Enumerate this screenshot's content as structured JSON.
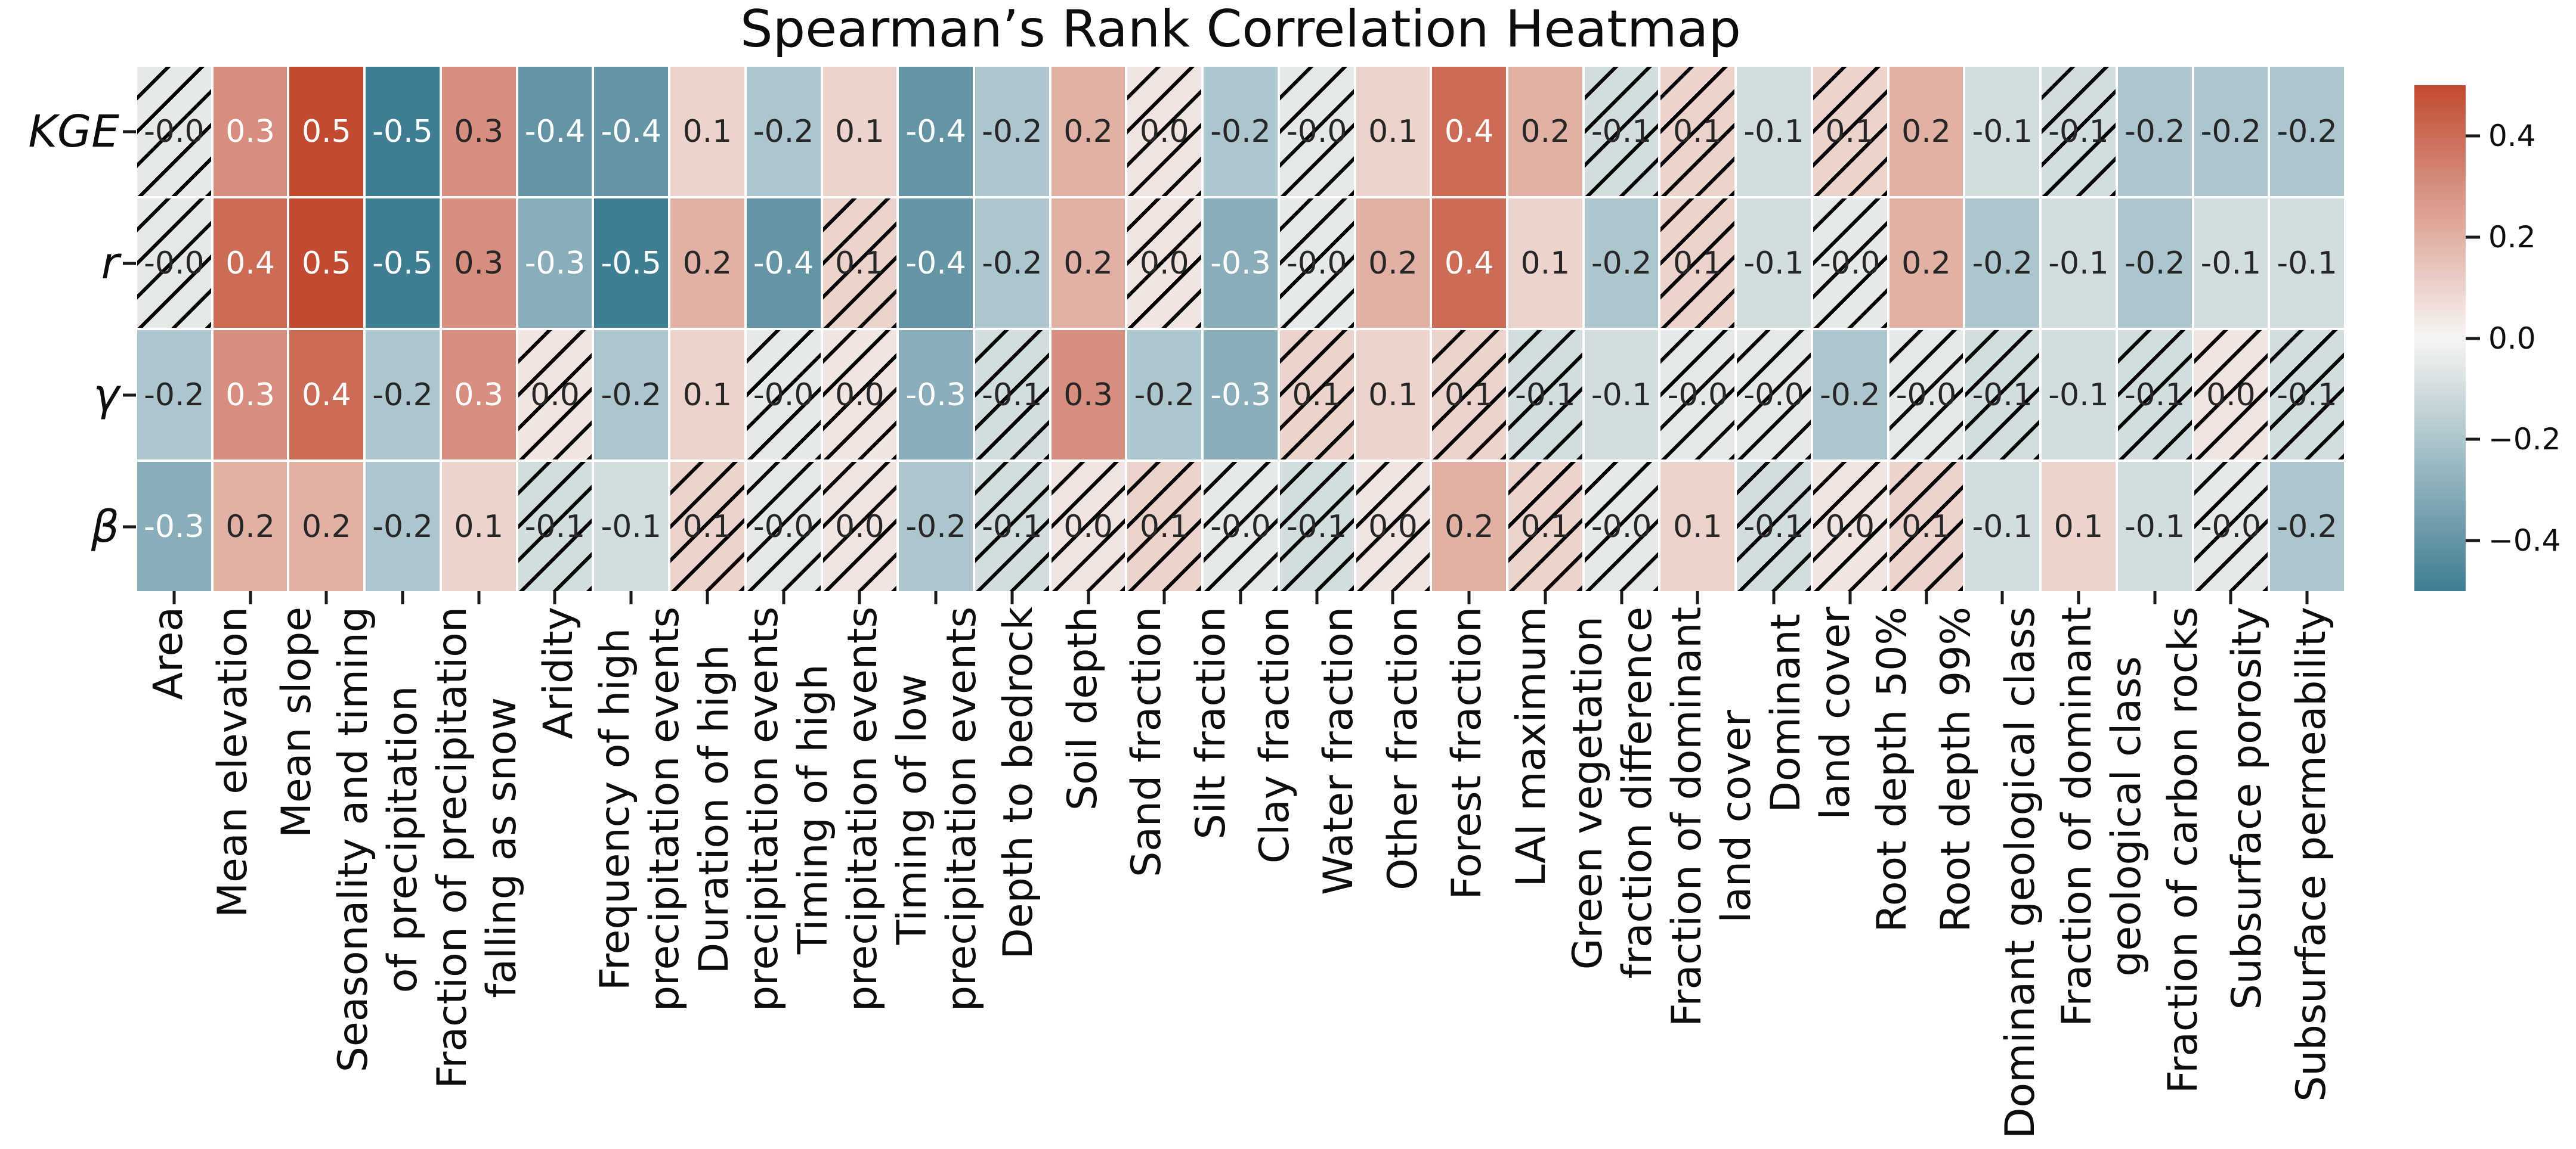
{
  "title": "Spearman’s Rank Correlation Heatmap",
  "chart_data": {
    "type": "heatmap",
    "title": "Spearman’s Rank Correlation Heatmap",
    "rows": [
      "KGE",
      "r",
      "γ",
      "β"
    ],
    "columns": [
      "Area",
      "Mean elevation",
      "Mean slope",
      "Seasonality and timing\nof precipitation",
      "Fraction of precipitation\nfalling as snow",
      "Aridity",
      "Frequency of high\nprecipitation events",
      "Duration of high\nprecipitation events",
      "Timing of high\nprecipitation events",
      "Timing of low\nprecipitation events",
      "Depth to bedrock",
      "Soil depth",
      "Sand fraction",
      "Silt fraction",
      "Clay fraction",
      "Water fraction",
      "Other fraction",
      "Forest fraction",
      "LAI maximum",
      "Green vegetation\nfraction difference",
      "Fraction of dominant\nland cover",
      "Dominant\nland cover",
      "Root depth 50%",
      "Root depth 99%",
      "Dominant geological class",
      "Fraction of dominant\ngeological class",
      "Fraction of carbon rocks",
      "Subsurface porosity",
      "Subsurface permeability"
    ],
    "series": [
      {
        "name": "KGE",
        "values": [
          "-0.0",
          "0.3",
          "0.5",
          "-0.5",
          "0.3",
          "-0.4",
          "-0.4",
          "0.1",
          "-0.2",
          "0.1",
          "-0.4",
          "-0.2",
          "0.2",
          "0.0",
          "-0.2",
          "-0.0",
          "0.1",
          "0.4",
          "0.2",
          "-0.1",
          "0.1",
          "-0.1",
          "0.1",
          "0.2",
          "-0.1",
          "-0.1",
          "-0.2",
          "-0.2",
          "-0.2"
        ],
        "hatched": [
          1,
          0,
          0,
          0,
          0,
          0,
          0,
          0,
          0,
          0,
          0,
          0,
          0,
          1,
          0,
          1,
          0,
          0,
          0,
          1,
          1,
          0,
          1,
          0,
          0,
          1,
          0,
          0,
          0
        ],
        "white_text": [
          0,
          1,
          1,
          1,
          0,
          1,
          1,
          0,
          0,
          0,
          1,
          0,
          0,
          0,
          0,
          0,
          0,
          1,
          0,
          0,
          0,
          0,
          0,
          0,
          0,
          0,
          0,
          0,
          0
        ]
      },
      {
        "name": "r",
        "values": [
          "-0.0",
          "0.4",
          "0.5",
          "-0.5",
          "0.3",
          "-0.3",
          "-0.5",
          "0.2",
          "-0.4",
          "0.1",
          "-0.4",
          "-0.2",
          "0.2",
          "0.0",
          "-0.3",
          "-0.0",
          "0.2",
          "0.4",
          "0.1",
          "-0.2",
          "0.1",
          "-0.1",
          "-0.0",
          "0.2",
          "-0.2",
          "-0.1",
          "-0.2",
          "-0.1",
          "-0.1"
        ],
        "hatched": [
          1,
          0,
          0,
          0,
          0,
          0,
          0,
          0,
          0,
          1,
          0,
          0,
          0,
          1,
          0,
          1,
          0,
          0,
          0,
          0,
          1,
          0,
          1,
          0,
          0,
          0,
          0,
          0,
          0
        ],
        "white_text": [
          0,
          1,
          1,
          1,
          0,
          1,
          1,
          0,
          1,
          0,
          1,
          0,
          0,
          0,
          1,
          0,
          0,
          1,
          0,
          0,
          0,
          0,
          0,
          0,
          0,
          0,
          0,
          0,
          0
        ]
      },
      {
        "name": "γ",
        "values": [
          "-0.2",
          "0.3",
          "0.4",
          "-0.2",
          "0.3",
          "0.0",
          "-0.2",
          "0.1",
          "-0.0",
          "0.0",
          "-0.3",
          "-0.1",
          "0.3",
          "-0.2",
          "-0.3",
          "0.1",
          "0.1",
          "0.1",
          "-0.1",
          "-0.1",
          "-0.0",
          "-0.0",
          "-0.2",
          "-0.0",
          "-0.1",
          "-0.1",
          "-0.1",
          "0.0",
          "-0.1"
        ],
        "hatched": [
          0,
          0,
          0,
          0,
          0,
          1,
          0,
          0,
          1,
          1,
          0,
          1,
          0,
          0,
          0,
          1,
          0,
          1,
          1,
          0,
          1,
          1,
          0,
          1,
          1,
          0,
          1,
          1,
          1
        ],
        "white_text": [
          0,
          1,
          1,
          0,
          1,
          0,
          0,
          0,
          0,
          0,
          1,
          0,
          0,
          0,
          1,
          0,
          0,
          0,
          0,
          0,
          0,
          0,
          0,
          0,
          0,
          0,
          0,
          0,
          0
        ]
      },
      {
        "name": "β",
        "values": [
          "-0.3",
          "0.2",
          "0.2",
          "-0.2",
          "0.1",
          "-0.1",
          "-0.1",
          "0.1",
          "-0.0",
          "0.0",
          "-0.2",
          "-0.1",
          "0.0",
          "0.1",
          "-0.0",
          "-0.1",
          "0.0",
          "0.2",
          "0.1",
          "-0.0",
          "0.1",
          "-0.1",
          "0.0",
          "0.1",
          "-0.1",
          "0.1",
          "-0.1",
          "-0.0",
          "-0.2"
        ],
        "hatched": [
          0,
          0,
          0,
          0,
          0,
          1,
          0,
          1,
          1,
          1,
          0,
          1,
          1,
          1,
          1,
          1,
          1,
          0,
          1,
          1,
          0,
          1,
          1,
          1,
          0,
          0,
          0,
          1,
          0
        ],
        "white_text": [
          1,
          0,
          0,
          0,
          0,
          0,
          0,
          0,
          0,
          0,
          0,
          0,
          0,
          0,
          0,
          0,
          0,
          0,
          0,
          0,
          0,
          0,
          0,
          0,
          0,
          0,
          0,
          0,
          0
        ]
      }
    ],
    "colorbar": {
      "tick_labels": [
        "0.4",
        "0.2",
        "0.0",
        "−0.2",
        "−0.4"
      ],
      "tick_values": [
        0.4,
        0.2,
        0.0,
        -0.2,
        -0.4
      ],
      "vmin": -0.5,
      "vmax": 0.5
    },
    "colors": {
      "positive": "#c14a30",
      "zero": "#f7f5f3",
      "negative": "#3f7d92",
      "hatch": "#000000",
      "text_dark": "#262626",
      "text_light": "#ffffff"
    },
    "legend_position": "right",
    "grid": false,
    "hatch_meaning": "hatched cells (diagonal lines) overlay some correlations"
  }
}
